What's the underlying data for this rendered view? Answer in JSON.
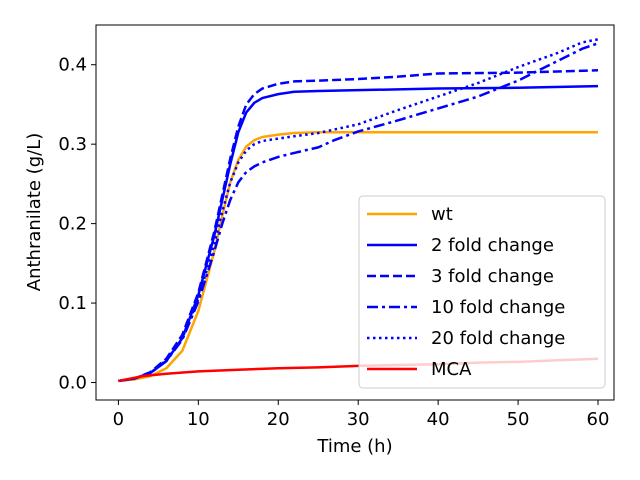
{
  "chart_data": {
    "type": "line",
    "xlabel": "Time (h)",
    "ylabel": "Anthranilate (g/L)",
    "xlim": [
      -2.8,
      62
    ],
    "ylim": [
      -0.022,
      0.45
    ],
    "xticks": [
      0,
      10,
      20,
      30,
      40,
      50,
      60
    ],
    "yticks": [
      0.0,
      0.1,
      0.2,
      0.3,
      0.4
    ],
    "xtick_labels": [
      "0",
      "10",
      "20",
      "30",
      "40",
      "50",
      "60"
    ],
    "ytick_labels": [
      "0.0",
      "0.1",
      "0.2",
      "0.3",
      "0.4"
    ],
    "grid": false,
    "legend_position": "lower-right",
    "series": [
      {
        "name": "wt",
        "color": "#ffa500",
        "dash": "solid",
        "points": [
          [
            0,
            0.002
          ],
          [
            2,
            0.004
          ],
          [
            4,
            0.008
          ],
          [
            6,
            0.018
          ],
          [
            8,
            0.04
          ],
          [
            10,
            0.09
          ],
          [
            12,
            0.165
          ],
          [
            13,
            0.21
          ],
          [
            14,
            0.252
          ],
          [
            15,
            0.28
          ],
          [
            16,
            0.297
          ],
          [
            17,
            0.305
          ],
          [
            18,
            0.309
          ],
          [
            20,
            0.312
          ],
          [
            22,
            0.314
          ],
          [
            25,
            0.315
          ],
          [
            30,
            0.315
          ],
          [
            40,
            0.315
          ],
          [
            50,
            0.315
          ],
          [
            60,
            0.315
          ]
        ]
      },
      {
        "name": "2 fold change",
        "color": "#0000ff",
        "dash": "solid",
        "points": [
          [
            0,
            0.002
          ],
          [
            2,
            0.005
          ],
          [
            4,
            0.012
          ],
          [
            6,
            0.027
          ],
          [
            8,
            0.056
          ],
          [
            10,
            0.11
          ],
          [
            12,
            0.185
          ],
          [
            13,
            0.23
          ],
          [
            14,
            0.275
          ],
          [
            15,
            0.315
          ],
          [
            16,
            0.34
          ],
          [
            17,
            0.352
          ],
          [
            18,
            0.358
          ],
          [
            20,
            0.363
          ],
          [
            22,
            0.366
          ],
          [
            25,
            0.367
          ],
          [
            30,
            0.368
          ],
          [
            40,
            0.37
          ],
          [
            50,
            0.371
          ],
          [
            60,
            0.373
          ]
        ]
      },
      {
        "name": "3 fold change",
        "color": "#0000ff",
        "dash": "dashed",
        "points": [
          [
            0,
            0.002
          ],
          [
            2,
            0.005
          ],
          [
            4,
            0.013
          ],
          [
            6,
            0.03
          ],
          [
            8,
            0.06
          ],
          [
            10,
            0.113
          ],
          [
            12,
            0.19
          ],
          [
            13,
            0.236
          ],
          [
            14,
            0.282
          ],
          [
            15,
            0.322
          ],
          [
            16,
            0.35
          ],
          [
            17,
            0.363
          ],
          [
            18,
            0.37
          ],
          [
            20,
            0.376
          ],
          [
            22,
            0.379
          ],
          [
            25,
            0.38
          ],
          [
            30,
            0.382
          ],
          [
            35,
            0.385
          ],
          [
            40,
            0.389
          ],
          [
            50,
            0.39
          ],
          [
            60,
            0.393
          ]
        ]
      },
      {
        "name": "10 fold change",
        "color": "#0000ff",
        "dash": "dashdot",
        "points": [
          [
            0,
            0.002
          ],
          [
            2,
            0.005
          ],
          [
            4,
            0.012
          ],
          [
            6,
            0.027
          ],
          [
            8,
            0.054
          ],
          [
            10,
            0.102
          ],
          [
            12,
            0.165
          ],
          [
            13,
            0.2
          ],
          [
            14,
            0.23
          ],
          [
            15,
            0.252
          ],
          [
            16,
            0.265
          ],
          [
            17,
            0.272
          ],
          [
            18,
            0.277
          ],
          [
            20,
            0.284
          ],
          [
            22,
            0.289
          ],
          [
            25,
            0.296
          ],
          [
            27,
            0.305
          ],
          [
            30,
            0.316
          ],
          [
            35,
            0.33
          ],
          [
            40,
            0.345
          ],
          [
            45,
            0.36
          ],
          [
            50,
            0.38
          ],
          [
            55,
            0.405
          ],
          [
            58,
            0.42
          ],
          [
            60,
            0.427
          ]
        ]
      },
      {
        "name": "20 fold change",
        "color": "#0000ff",
        "dash": "dotted",
        "points": [
          [
            0,
            0.002
          ],
          [
            2,
            0.005
          ],
          [
            4,
            0.012
          ],
          [
            6,
            0.028
          ],
          [
            8,
            0.056
          ],
          [
            10,
            0.105
          ],
          [
            12,
            0.175
          ],
          [
            13,
            0.215
          ],
          [
            14,
            0.252
          ],
          [
            15,
            0.277
          ],
          [
            16,
            0.292
          ],
          [
            17,
            0.3
          ],
          [
            18,
            0.304
          ],
          [
            20,
            0.307
          ],
          [
            22,
            0.31
          ],
          [
            25,
            0.314
          ],
          [
            30,
            0.325
          ],
          [
            35,
            0.343
          ],
          [
            40,
            0.36
          ],
          [
            45,
            0.377
          ],
          [
            50,
            0.397
          ],
          [
            55,
            0.415
          ],
          [
            58,
            0.428
          ],
          [
            60,
            0.432
          ]
        ]
      },
      {
        "name": "MCA",
        "color": "#ff0000",
        "dash": "solid",
        "points": [
          [
            0,
            0.002
          ],
          [
            3,
            0.008
          ],
          [
            6,
            0.011
          ],
          [
            10,
            0.014
          ],
          [
            15,
            0.016
          ],
          [
            20,
            0.018
          ],
          [
            25,
            0.019
          ],
          [
            30,
            0.021
          ],
          [
            35,
            0.022
          ],
          [
            40,
            0.023
          ],
          [
            45,
            0.025
          ],
          [
            50,
            0.026
          ],
          [
            55,
            0.028
          ],
          [
            60,
            0.03
          ]
        ]
      }
    ]
  }
}
